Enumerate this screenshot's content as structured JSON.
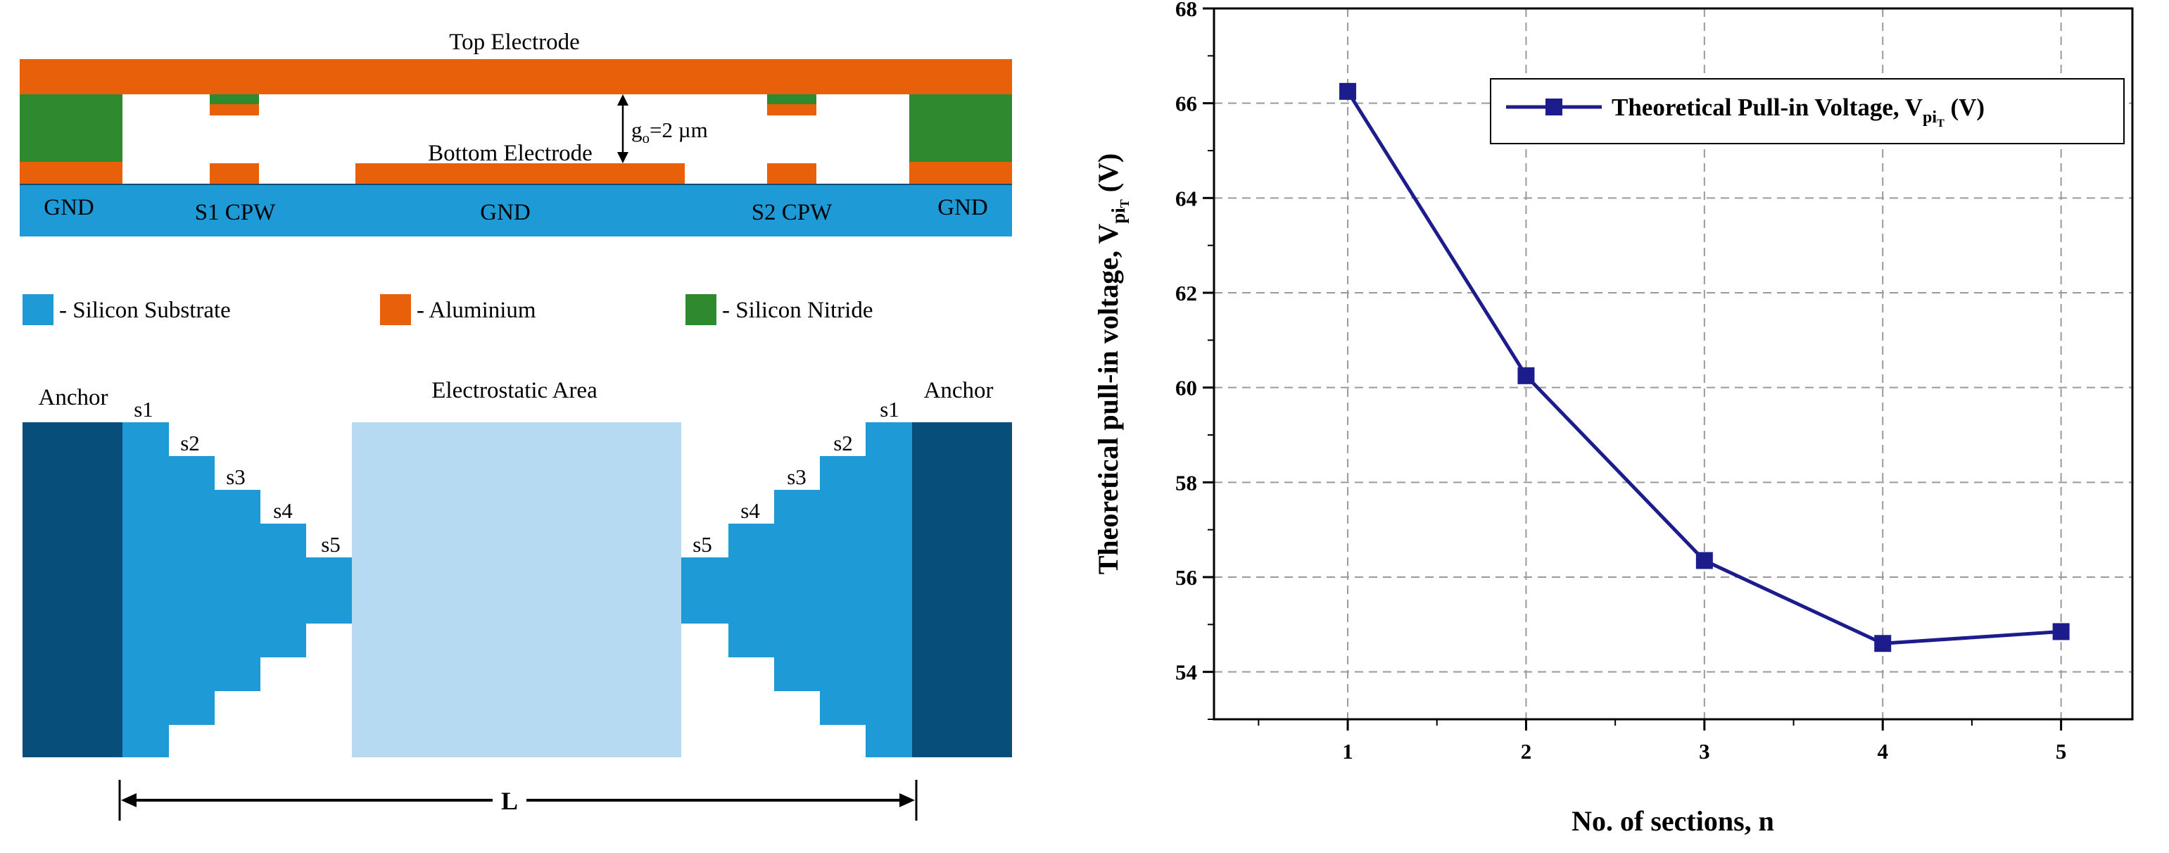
{
  "colors": {
    "aluminium": "#e8600a",
    "silicon_substrate": "#1e9ad6",
    "silicon_nitride": "#2f8a2f",
    "anchor": "#074f7a",
    "electrostatic_area": "#b6daf1",
    "series": "#1c1c8c"
  },
  "cross_section": {
    "top_electrode": "Top Electrode",
    "bottom_electrode": "Bottom Electrode",
    "gap_prefix": "g",
    "gap_sub": "o",
    "gap_value": "=2 µm",
    "gnd_left": "GND",
    "s1_cpw": "S1 CPW",
    "gnd_center": "GND",
    "s2_cpw": "S2 CPW",
    "gnd_right": "GND"
  },
  "legend_materials": [
    {
      "label": "- Silicon Substrate",
      "color_key": "silicon_substrate"
    },
    {
      "label": "- Aluminium",
      "color_key": "aluminium"
    },
    {
      "label": "- Silicon Nitride",
      "color_key": "silicon_nitride"
    }
  ],
  "top_view": {
    "anchor_left": "Anchor",
    "anchor_right": "Anchor",
    "electrostatic_area": "Electrostatic Area",
    "sections_left": [
      "s1",
      "s2",
      "s3",
      "s4",
      "s5"
    ],
    "sections_right": [
      "s5",
      "s4",
      "s3",
      "s2",
      "s1"
    ],
    "length_label": "L"
  },
  "chart_data": {
    "type": "line",
    "title": "",
    "xlabel": "No. of sections, n",
    "ylabel": "Theoretical pull-in voltage, V",
    "ylabel_sub": "pi",
    "ylabel_subsub": "T",
    "ylabel_unit": " (V)",
    "x": [
      1,
      2,
      3,
      4,
      5
    ],
    "xlim": [
      0.25,
      5.4
    ],
    "ylim": [
      53,
      68
    ],
    "xticks": [
      1,
      2,
      3,
      4,
      5
    ],
    "yticks": [
      54,
      56,
      58,
      60,
      62,
      64,
      66,
      68
    ],
    "grid": true,
    "legend_position": "top-right",
    "series": [
      {
        "name": "Theoretical Pull-in Voltage, V",
        "name_sub": "pi",
        "name_subsub": "T",
        "name_unit": " (V)",
        "values": [
          66.25,
          60.25,
          56.35,
          54.6,
          54.85
        ]
      }
    ]
  }
}
